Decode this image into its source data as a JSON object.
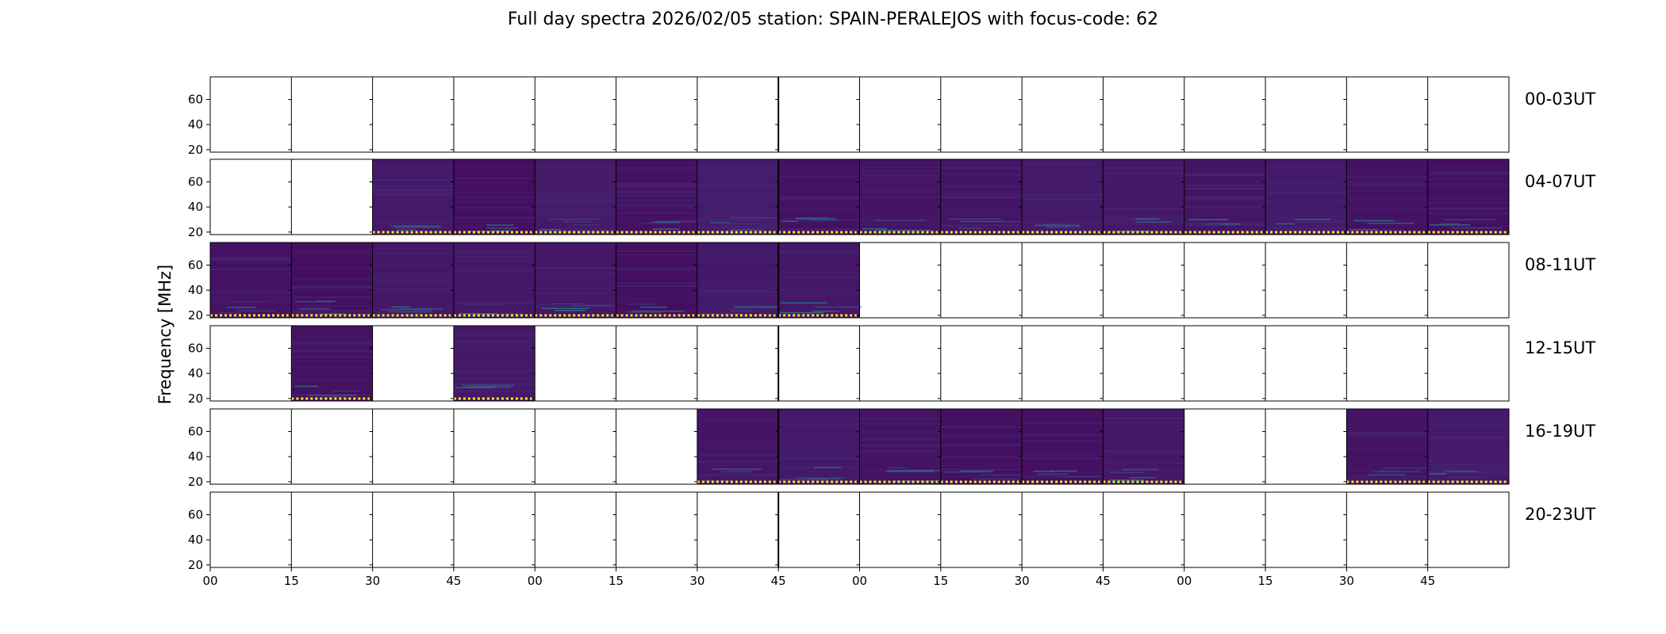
{
  "chart_data": {
    "type": "heatmap",
    "title": "Full day spectra 2026/02/05 station: SPAIN-PERALEJOS with focus-code: 62",
    "ylabel": "Frequency [MHz]",
    "xlabel": "",
    "yticks": [
      20,
      40,
      60
    ],
    "ylim": [
      18,
      78
    ],
    "xticks": [
      "00",
      "15",
      "30",
      "45",
      "00",
      "15",
      "30",
      "45",
      "00",
      "15",
      "30",
      "45",
      "00",
      "15",
      "30",
      "45"
    ],
    "panel_minutes": 15,
    "panels_per_row": 16,
    "colors": {
      "low": "#440154",
      "mid": "#46327e",
      "high": "#21918c",
      "max": "#fde725"
    },
    "rows": [
      {
        "label": "00-03UT",
        "panels_with_data": []
      },
      {
        "label": "04-07UT",
        "panels_with_data": [
          2,
          3,
          4,
          5,
          6,
          7,
          8,
          9,
          10,
          11,
          12,
          13,
          14,
          15
        ]
      },
      {
        "label": "08-11UT",
        "panels_with_data": [
          0,
          1,
          2,
          3,
          4,
          5,
          6,
          7
        ]
      },
      {
        "label": "12-15UT",
        "panels_with_data": [
          1,
          3
        ]
      },
      {
        "label": "16-19UT",
        "panels_with_data": [
          6,
          7,
          8,
          9,
          10,
          11,
          14,
          15
        ]
      },
      {
        "label": "20-23UT",
        "panels_with_data": []
      }
    ]
  }
}
